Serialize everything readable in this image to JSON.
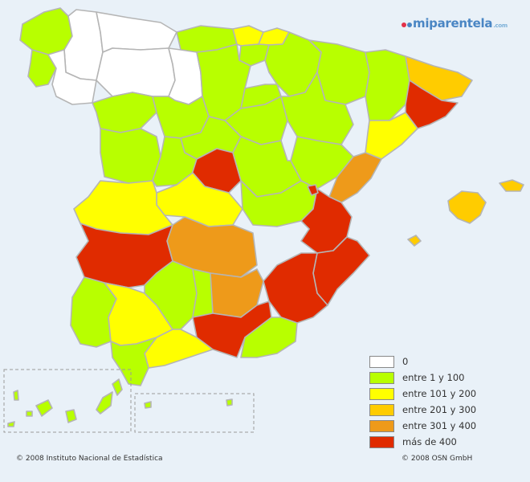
{
  "logo": {
    "text": "miparentela",
    "suffix": ".com"
  },
  "legend": [
    {
      "label": "0",
      "color": "#ffffff"
    },
    {
      "label": "entre 1 y 100",
      "color": "#b8ff00"
    },
    {
      "label": "entre 101 y 200",
      "color": "#ffff00"
    },
    {
      "label": "entre 201 y 300",
      "color": "#ffcc00"
    },
    {
      "label": "entre 301 y 400",
      "color": "#ee9a1a"
    },
    {
      "label": "más de 400",
      "color": "#e02b00"
    }
  ],
  "footer": {
    "left": "© 2008 Instituto Nacional de Estadística",
    "right": "© 2008 OSN GmbH"
  }
}
